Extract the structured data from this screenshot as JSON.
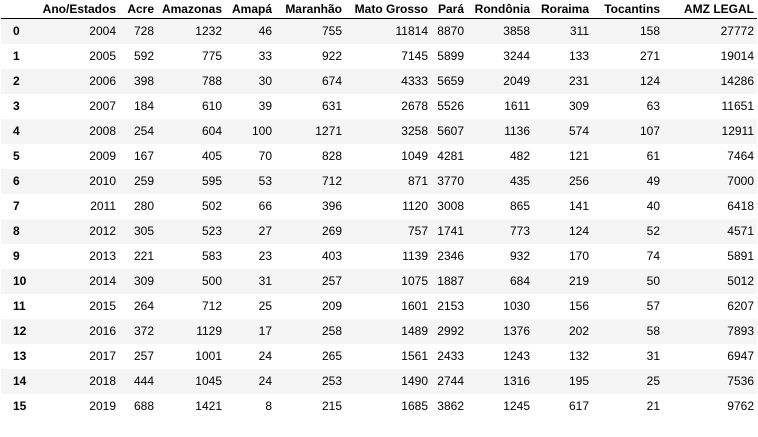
{
  "table": {
    "columns": [
      "",
      "Ano/Estados",
      "Acre",
      "Amazonas",
      "Amapá",
      "Maranhão",
      "Mato Grosso",
      "Pará",
      "Rondônia",
      "Roraima",
      "Tocantins",
      "AMZ LEGAL"
    ],
    "rows": [
      {
        "index": "0",
        "cells": [
          "2004",
          "728",
          "1232",
          "46",
          "755",
          "11814",
          "8870",
          "3858",
          "311",
          "158",
          "27772"
        ]
      },
      {
        "index": "1",
        "cells": [
          "2005",
          "592",
          "775",
          "33",
          "922",
          "7145",
          "5899",
          "3244",
          "133",
          "271",
          "19014"
        ]
      },
      {
        "index": "2",
        "cells": [
          "2006",
          "398",
          "788",
          "30",
          "674",
          "4333",
          "5659",
          "2049",
          "231",
          "124",
          "14286"
        ]
      },
      {
        "index": "3",
        "cells": [
          "2007",
          "184",
          "610",
          "39",
          "631",
          "2678",
          "5526",
          "1611",
          "309",
          "63",
          "11651"
        ]
      },
      {
        "index": "4",
        "cells": [
          "2008",
          "254",
          "604",
          "100",
          "1271",
          "3258",
          "5607",
          "1136",
          "574",
          "107",
          "12911"
        ]
      },
      {
        "index": "5",
        "cells": [
          "2009",
          "167",
          "405",
          "70",
          "828",
          "1049",
          "4281",
          "482",
          "121",
          "61",
          "7464"
        ]
      },
      {
        "index": "6",
        "cells": [
          "2010",
          "259",
          "595",
          "53",
          "712",
          "871",
          "3770",
          "435",
          "256",
          "49",
          "7000"
        ]
      },
      {
        "index": "7",
        "cells": [
          "2011",
          "280",
          "502",
          "66",
          "396",
          "1120",
          "3008",
          "865",
          "141",
          "40",
          "6418"
        ]
      },
      {
        "index": "8",
        "cells": [
          "2012",
          "305",
          "523",
          "27",
          "269",
          "757",
          "1741",
          "773",
          "124",
          "52",
          "4571"
        ]
      },
      {
        "index": "9",
        "cells": [
          "2013",
          "221",
          "583",
          "23",
          "403",
          "1139",
          "2346",
          "932",
          "170",
          "74",
          "5891"
        ]
      },
      {
        "index": "10",
        "cells": [
          "2014",
          "309",
          "500",
          "31",
          "257",
          "1075",
          "1887",
          "684",
          "219",
          "50",
          "5012"
        ]
      },
      {
        "index": "11",
        "cells": [
          "2015",
          "264",
          "712",
          "25",
          "209",
          "1601",
          "2153",
          "1030",
          "156",
          "57",
          "6207"
        ]
      },
      {
        "index": "12",
        "cells": [
          "2016",
          "372",
          "1129",
          "17",
          "258",
          "1489",
          "2992",
          "1376",
          "202",
          "58",
          "7893"
        ]
      },
      {
        "index": "13",
        "cells": [
          "2017",
          "257",
          "1001",
          "24",
          "265",
          "1561",
          "2433",
          "1243",
          "132",
          "31",
          "6947"
        ]
      },
      {
        "index": "14",
        "cells": [
          "2018",
          "444",
          "1045",
          "24",
          "253",
          "1490",
          "2744",
          "1316",
          "195",
          "25",
          "7536"
        ]
      },
      {
        "index": "15",
        "cells": [
          "2019",
          "688",
          "1421",
          "8",
          "215",
          "1685",
          "3862",
          "1245",
          "617",
          "21",
          "9762"
        ]
      }
    ]
  },
  "colors": {
    "stripe": "#f5f5f5",
    "background": "#ffffff",
    "header_rule": "#000000",
    "text": "#000000"
  }
}
